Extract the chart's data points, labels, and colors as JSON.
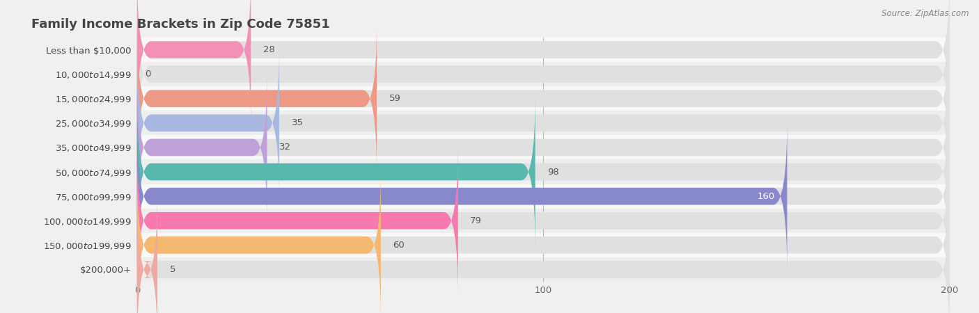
{
  "title": "Family Income Brackets in Zip Code 75851",
  "source": "Source: ZipAtlas.com",
  "categories": [
    "Less than $10,000",
    "$10,000 to $14,999",
    "$15,000 to $24,999",
    "$25,000 to $34,999",
    "$35,000 to $49,999",
    "$50,000 to $74,999",
    "$75,000 to $99,999",
    "$100,000 to $149,999",
    "$150,000 to $199,999",
    "$200,000+"
  ],
  "values": [
    28,
    0,
    59,
    35,
    32,
    98,
    160,
    79,
    60,
    5
  ],
  "bar_colors": [
    "#f490b8",
    "#f5bf88",
    "#ee9985",
    "#a8b8e0",
    "#c0a0d8",
    "#58b8b0",
    "#8888cc",
    "#f878b0",
    "#f5b870",
    "#f0a8a0"
  ],
  "bg_color": "#f0f0f0",
  "bar_bg_color": "#e0e0e0",
  "row_bg_even": "#eeeeee",
  "row_bg_odd": "#f8f8f8",
  "xlim": [
    0,
    200
  ],
  "xticks": [
    0,
    100,
    200
  ],
  "title_fontsize": 13,
  "label_fontsize": 9.5,
  "value_fontsize": 9.5,
  "value_inside_color": "#ffffff",
  "value_outside_color": "#555555",
  "inside_label_threshold": 155
}
